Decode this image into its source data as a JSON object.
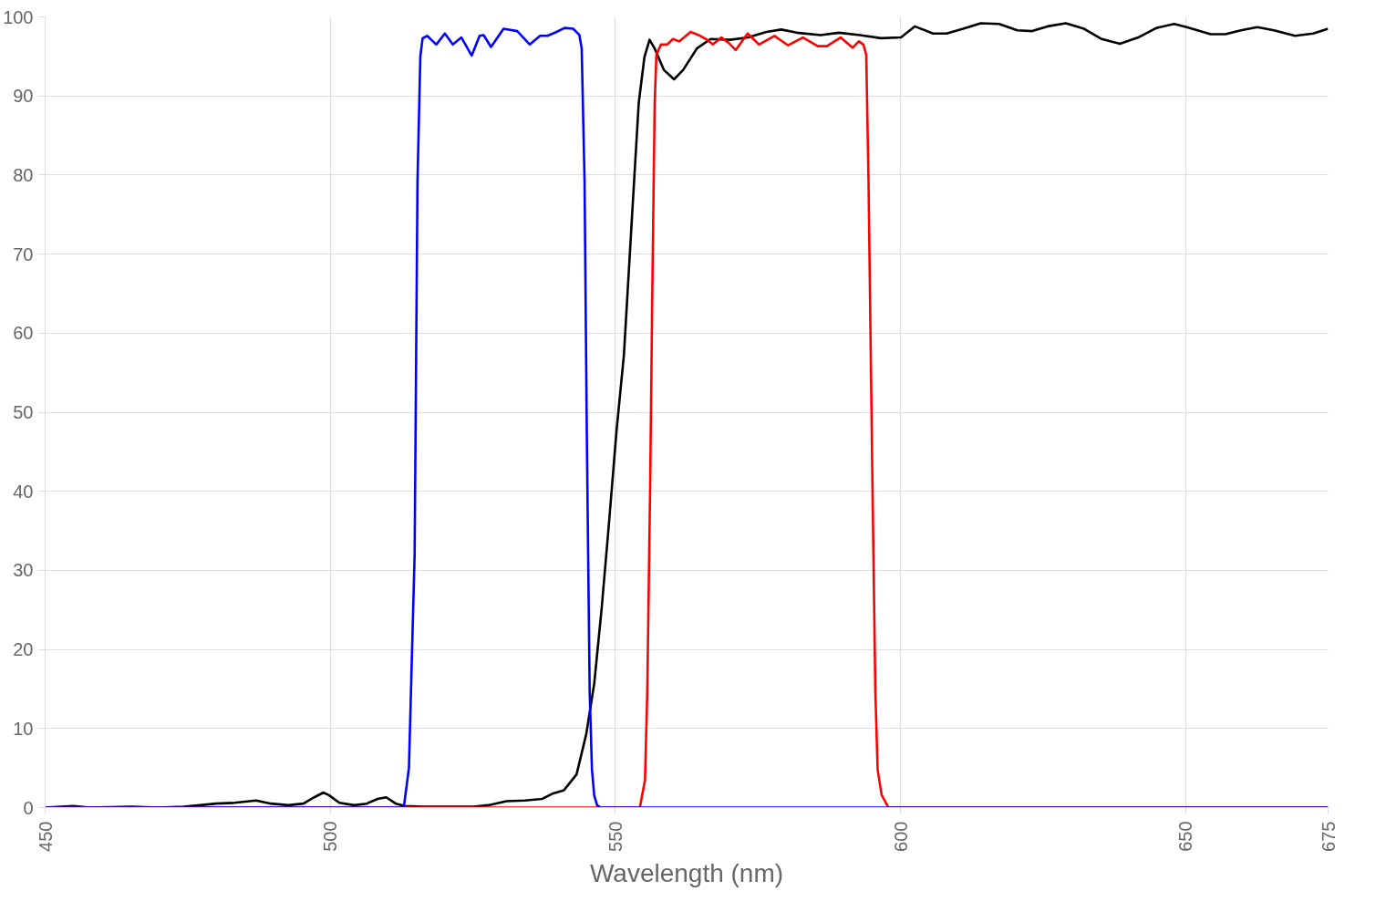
{
  "chart_data": {
    "type": "line",
    "xlabel": "Wavelength (nm)",
    "xlim": [
      450,
      675
    ],
    "xticks": [
      450,
      500,
      550,
      600,
      650,
      675
    ],
    "ylim": [
      0,
      100
    ],
    "yticks": [
      0,
      10,
      20,
      30,
      40,
      50,
      60,
      70,
      80,
      90,
      100
    ],
    "grid": true,
    "series": [
      {
        "color": "#000000",
        "x": [
          450,
          454.9,
          457.8,
          465.1,
          469.9,
          474.3,
          480.0,
          483.2,
          487.0,
          489.6,
          492.7,
          495.3,
          497.2,
          498.8,
          499.7,
          501.6,
          504.2,
          506.4,
          508.3,
          509.8,
          511.5,
          513.1,
          516.3,
          525.2,
          527.7,
          530.9,
          534.1,
          537.2,
          539.1,
          541.0,
          543.2,
          544.9,
          546.3,
          547.6,
          548.9,
          550.2,
          551.5,
          552.8,
          554.1,
          555.1,
          556.0,
          556.9,
          558.5,
          560.3,
          561.9,
          564.3,
          566.7,
          570.1,
          573.3,
          576.5,
          579.1,
          581.8,
          586.0,
          589.2,
          592.9,
          596.6,
          600.1,
          602.5,
          605.7,
          608.1,
          611.0,
          614.1,
          617.3,
          620.5,
          623.1,
          625.8,
          629.0,
          632.2,
          635.3,
          638.5,
          641.7,
          644.9,
          648.0,
          650.2,
          654.4,
          657.0,
          659.7,
          662.6,
          665.5,
          669.2,
          672.4,
          675
        ],
        "values": [
          0,
          0.2,
          0,
          0.1,
          0,
          0.1,
          0.5,
          0.6,
          0.9,
          0.5,
          0.3,
          0.5,
          1.3,
          1.9,
          1.6,
          0.6,
          0.3,
          0.5,
          1.1,
          1.3,
          0.5,
          0.2,
          0.1,
          0.1,
          0.3,
          0.8,
          0.9,
          1.1,
          1.8,
          2.2,
          4.2,
          9.3,
          15.7,
          25.2,
          36.1,
          47.6,
          57.2,
          73.2,
          89.1,
          94.9,
          97.1,
          96.0,
          93.3,
          92.1,
          93.3,
          96.0,
          97.2,
          97.1,
          97.4,
          98.1,
          98.4,
          98.0,
          97.7,
          98.0,
          97.7,
          97.3,
          97.4,
          98.8,
          97.9,
          97.9,
          98.5,
          99.2,
          99.1,
          98.3,
          98.2,
          98.8,
          99.2,
          98.5,
          97.2,
          96.6,
          97.4,
          98.6,
          99.1,
          98.7,
          97.8,
          97.8,
          98.3,
          98.7,
          98.3,
          97.6,
          97.9,
          98.5
        ]
      },
      {
        "color": "#ff0000",
        "x": [
          450,
          554.3,
          555.2,
          555.6,
          556.1,
          556.5,
          556.9,
          557.2,
          558.0,
          559.1,
          560.1,
          561.2,
          563.2,
          564.6,
          565.9,
          567.1,
          568.6,
          569.9,
          571.1,
          572.3,
          573.2,
          574.2,
          575.2,
          577.9,
          580.3,
          582.9,
          585.5,
          587.1,
          589.5,
          591.6,
          592.7,
          593.5,
          594.0,
          594.4,
          595.1,
          595.6,
          596.0,
          596.7,
          597.9,
          675
        ],
        "values": [
          0,
          0,
          3.5,
          14.6,
          40.4,
          66.3,
          89,
          95.2,
          96.5,
          96.5,
          97.2,
          96.9,
          98.1,
          97.7,
          97.2,
          96.5,
          97.4,
          96.7,
          95.8,
          97.0,
          97.9,
          97.2,
          96.5,
          97.6,
          96.4,
          97.4,
          96.3,
          96.3,
          97.4,
          96.1,
          96.9,
          96.5,
          95.2,
          79.3,
          40.4,
          14.6,
          4.8,
          1.6,
          0,
          0
        ]
      },
      {
        "color": "#0000ff",
        "x": [
          450,
          512.9,
          513.8,
          514.8,
          515.3,
          515.8,
          516.2,
          517.0,
          518.6,
          520.1,
          521.5,
          523.0,
          524.8,
          526.2,
          526.9,
          528.2,
          530.4,
          532.8,
          535.0,
          536.8,
          538.1,
          539.7,
          541.1,
          542.6,
          543.7,
          544.1,
          544.6,
          545.0,
          545.5,
          545.9,
          546.3,
          546.8,
          547.4,
          675
        ],
        "values": [
          0,
          0,
          5,
          32,
          79,
          95,
          97.3,
          97.6,
          96.5,
          97.9,
          96.5,
          97.4,
          95.1,
          97.6,
          97.7,
          96.2,
          98.5,
          98.2,
          96.5,
          97.6,
          97.6,
          98.1,
          98.6,
          98.5,
          97.7,
          96.0,
          79.3,
          47,
          14.6,
          4.8,
          1.5,
          0.3,
          0,
          0
        ]
      }
    ]
  }
}
